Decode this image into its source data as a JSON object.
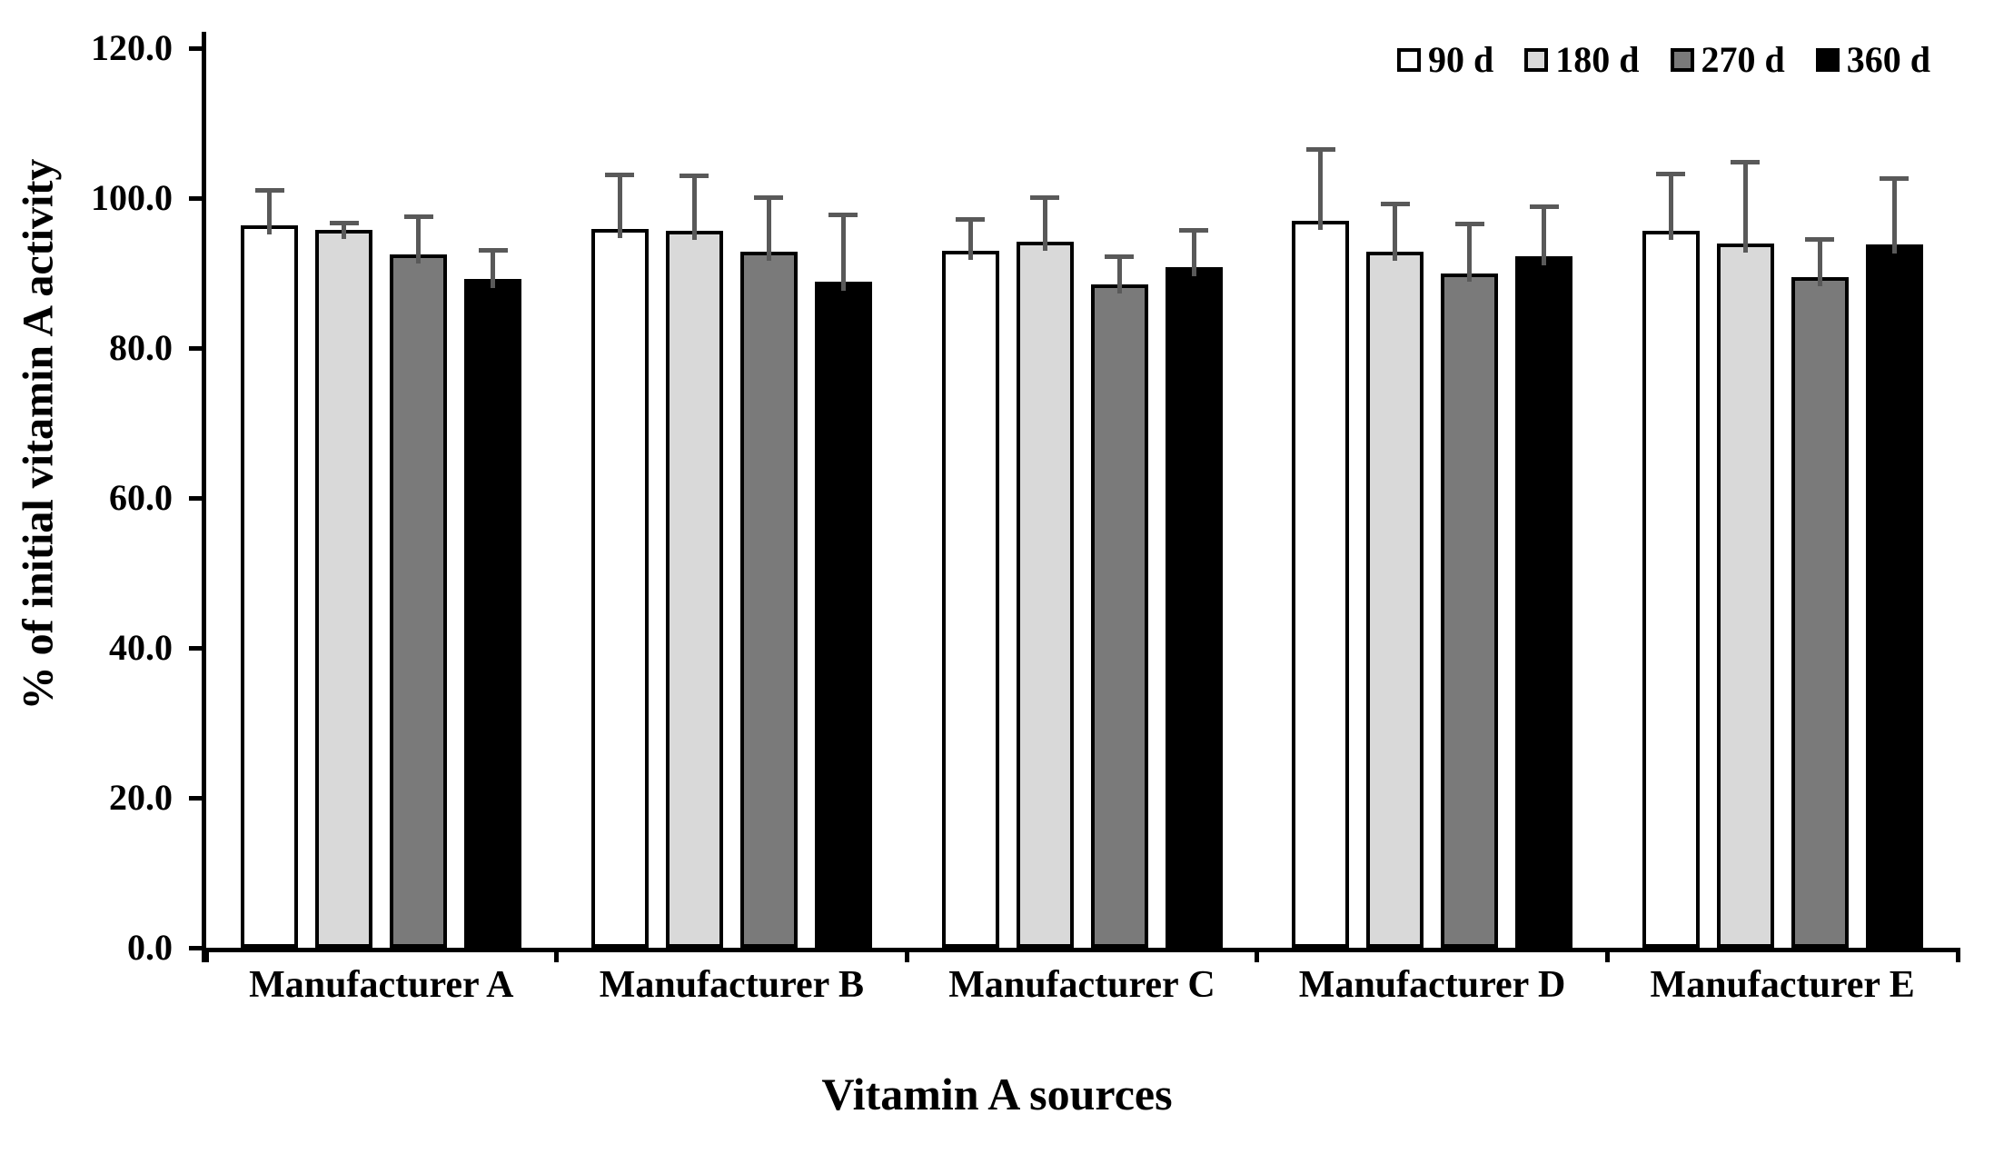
{
  "figure": {
    "background": "#ffffff",
    "text_color": "#000000",
    "axis_color": "#000000"
  },
  "chart_data": {
    "type": "bar",
    "title": "",
    "xlabel": "Vitamin A sources",
    "ylabel": "% of initial vitamin A activity",
    "ylim": [
      0,
      120
    ],
    "ytick_step": 20,
    "ytick_labels": [
      "0.0",
      "20.0",
      "40.0",
      "60.0",
      "80.0",
      "100.0",
      "120.0"
    ],
    "grid": false,
    "legend_position": "top-right",
    "error_bar_color": "#595959",
    "bar_border_color": "#000000",
    "categories": [
      "Manufacturer A",
      "Manufacturer B",
      "Manufacturer C",
      "Manufacturer D",
      "Manufacturer E"
    ],
    "series": [
      {
        "name": "90 d",
        "color": "#ffffff",
        "values": [
          96.4,
          95.9,
          93.0,
          97.0,
          95.6
        ],
        "errors": [
          4.7,
          7.3,
          4.2,
          9.6,
          7.7
        ]
      },
      {
        "name": "180 d",
        "color": "#d9d9d9",
        "values": [
          95.8,
          95.6,
          94.2,
          92.9,
          93.9
        ],
        "errors": [
          0.9,
          7.4,
          5.9,
          6.4,
          10.9
        ]
      },
      {
        "name": "270 d",
        "color": "#7a7a7a",
        "values": [
          92.5,
          92.9,
          88.5,
          90.0,
          89.5
        ],
        "errors": [
          5.1,
          7.2,
          3.7,
          6.6,
          5.1
        ]
      },
      {
        "name": "360 d",
        "color": "#000000",
        "values": [
          89.2,
          88.9,
          90.8,
          92.3,
          93.8
        ],
        "errors": [
          3.9,
          8.9,
          4.9,
          6.6,
          8.9
        ]
      }
    ]
  }
}
